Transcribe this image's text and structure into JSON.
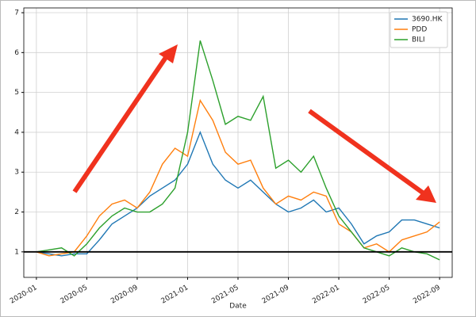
{
  "chart_data": {
    "type": "line",
    "x_label": "Date",
    "x": [
      "2020-01",
      "2020-02",
      "2020-03",
      "2020-04",
      "2020-05",
      "2020-06",
      "2020-07",
      "2020-08",
      "2020-09",
      "2020-10",
      "2020-11",
      "2020-12",
      "2021-01",
      "2021-02",
      "2021-03",
      "2021-04",
      "2021-05",
      "2021-06",
      "2021-07",
      "2021-08",
      "2021-09",
      "2021-10",
      "2021-11",
      "2021-12",
      "2022-01",
      "2022-02",
      "2022-03",
      "2022-04",
      "2022-05",
      "2022-06",
      "2022-07",
      "2022-08",
      "2022-09"
    ],
    "series": [
      {
        "name": "3690.HK",
        "color": "#1f77b4",
        "values": [
          1.0,
          0.95,
          0.9,
          0.95,
          0.95,
          1.3,
          1.7,
          1.9,
          2.1,
          2.4,
          2.6,
          2.8,
          3.2,
          4.0,
          3.2,
          2.8,
          2.6,
          2.8,
          2.5,
          2.2,
          2.0,
          2.1,
          2.3,
          2.0,
          2.1,
          1.7,
          1.2,
          1.4,
          1.5,
          1.8,
          1.8,
          1.7,
          1.6
        ]
      },
      {
        "name": "PDD",
        "color": "#ff7f0e",
        "values": [
          1.0,
          0.9,
          0.95,
          1.0,
          1.4,
          1.9,
          2.2,
          2.3,
          2.1,
          2.5,
          3.2,
          3.6,
          3.4,
          4.8,
          4.3,
          3.5,
          3.2,
          3.3,
          2.6,
          2.2,
          2.4,
          2.3,
          2.5,
          2.4,
          1.7,
          1.5,
          1.1,
          1.2,
          1.0,
          1.3,
          1.4,
          1.5,
          1.75
        ]
      },
      {
        "name": "BILI",
        "color": "#2ca02c",
        "values": [
          1.0,
          1.05,
          1.1,
          0.9,
          1.2,
          1.6,
          1.9,
          2.1,
          2.0,
          2.0,
          2.2,
          2.6,
          4.0,
          6.3,
          5.3,
          4.2,
          4.4,
          4.3,
          4.9,
          3.1,
          3.3,
          3.0,
          3.4,
          2.6,
          1.9,
          1.5,
          1.1,
          1.0,
          0.9,
          1.1,
          1.0,
          0.95,
          0.8
        ]
      }
    ],
    "xlim": [
      "2019-12",
      "2022-10"
    ],
    "xticks": [
      "2020-01",
      "2020-05",
      "2020-09",
      "2021-01",
      "2021-05",
      "2021-09",
      "2022-01",
      "2022-05",
      "2022-09"
    ],
    "ylim": [
      0.36,
      7.12
    ],
    "yticks": [
      1,
      2,
      3,
      4,
      5,
      6,
      7
    ],
    "hline": 1,
    "grid": true,
    "legend": "upper-right"
  }
}
